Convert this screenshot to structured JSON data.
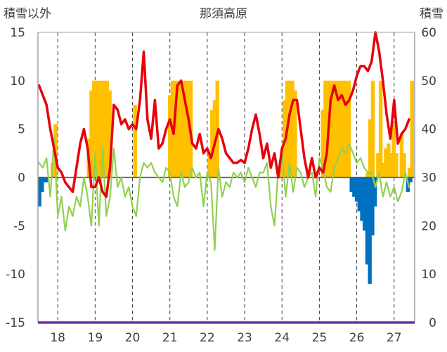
{
  "chart_data": {
    "type": "bar",
    "title": "那須高原",
    "left_axis_title": "積雪以外",
    "right_axis_title": "積雪",
    "left_ylim": [
      -15,
      15
    ],
    "left_ticks": [
      -15,
      -10,
      -5,
      0,
      5,
      10,
      15
    ],
    "right_ylim": [
      0,
      60
    ],
    "right_ticks": [
      0,
      10,
      20,
      30,
      40,
      50,
      60
    ],
    "x_tick_labels": [
      "18",
      "19",
      "20",
      "21",
      "22",
      "23",
      "24",
      "25",
      "26",
      "27"
    ],
    "grid": "vertical dashed",
    "colors": {
      "red_line": "#e8000b",
      "green_line": "#92d050",
      "orange_bars": "#ffc000",
      "blue_bars": "#0070c0",
      "baseline": "#7030a0",
      "axis": "#a0a0a0"
    },
    "series": [
      {
        "color": "#e8000b",
        "chart_type": "line",
        "axis": "left",
        "x": [
          17.5,
          17.6,
          17.7,
          17.8,
          17.9,
          18.0,
          18.1,
          18.2,
          18.3,
          18.4,
          18.5,
          18.6,
          18.7,
          18.8,
          18.9,
          19.0,
          19.1,
          19.2,
          19.3,
          19.4,
          19.5,
          19.6,
          19.7,
          19.8,
          19.9,
          20.0,
          20.1,
          20.2,
          20.3,
          20.4,
          20.5,
          20.6,
          20.7,
          20.8,
          20.9,
          21.0,
          21.1,
          21.2,
          21.3,
          21.4,
          21.5,
          21.6,
          21.7,
          21.8,
          21.9,
          22.0,
          22.1,
          22.2,
          22.3,
          22.4,
          22.5,
          22.6,
          22.7,
          22.8,
          22.9,
          23.0,
          23.1,
          23.2,
          23.3,
          23.4,
          23.5,
          23.6,
          23.7,
          23.8,
          23.9,
          24.0,
          24.1,
          24.2,
          24.3,
          24.4,
          24.5,
          24.6,
          24.7,
          24.8,
          24.9,
          25.0,
          25.1,
          25.2,
          25.3,
          25.4,
          25.5,
          25.6,
          25.7,
          25.8,
          25.9,
          26.0,
          26.1,
          26.2,
          26.3,
          26.4,
          26.5,
          26.6,
          26.7,
          26.8,
          26.9,
          27.0,
          27.1,
          27.2,
          27.3,
          27.4
        ],
        "values": [
          9.5,
          8.5,
          7.5,
          5.0,
          3.0,
          1.0,
          0.5,
          -0.5,
          -1.0,
          -1.5,
          1.0,
          3.5,
          5.0,
          3.0,
          -1.0,
          -1.0,
          0.0,
          -1.5,
          -2.0,
          1.0,
          7.5,
          7.0,
          5.5,
          6.0,
          5.0,
          5.5,
          5.0,
          8.0,
          13.0,
          6.0,
          4.0,
          8.0,
          3.0,
          3.5,
          5.0,
          6.0,
          4.5,
          9.5,
          10.0,
          8.0,
          6.0,
          3.5,
          3.0,
          4.5,
          2.5,
          3.0,
          2.0,
          3.5,
          5.0,
          4.0,
          2.5,
          2.0,
          1.5,
          1.5,
          1.8,
          1.5,
          3.0,
          5.0,
          6.5,
          4.5,
          2.0,
          3.5,
          1.0,
          2.5,
          0.0,
          3.0,
          4.0,
          6.5,
          8.0,
          8.0,
          5.0,
          2.0,
          0.0,
          2.0,
          0.0,
          1.0,
          0.5,
          2.5,
          8.0,
          9.5,
          8.0,
          8.5,
          7.5,
          8.0,
          9.0,
          10.5,
          11.5,
          11.5,
          11.0,
          12.0,
          15.0,
          13.0,
          10.0,
          6.5,
          4.0,
          8.0,
          3.5,
          4.5,
          5.0,
          6.0
        ]
      },
      {
        "color": "#92d050",
        "chart_type": "line",
        "axis": "left",
        "x": [
          17.5,
          17.6,
          17.7,
          17.8,
          17.9,
          18.0,
          18.1,
          18.2,
          18.3,
          18.4,
          18.5,
          18.6,
          18.7,
          18.8,
          18.9,
          19.0,
          19.1,
          19.2,
          19.3,
          19.4,
          19.5,
          19.6,
          19.7,
          19.8,
          19.9,
          20.0,
          20.1,
          20.2,
          20.3,
          20.4,
          20.5,
          20.6,
          20.7,
          20.8,
          20.9,
          21.0,
          21.1,
          21.2,
          21.3,
          21.4,
          21.5,
          21.6,
          21.7,
          21.8,
          21.9,
          22.0,
          22.1,
          22.2,
          22.3,
          22.4,
          22.5,
          22.6,
          22.7,
          22.8,
          22.9,
          23.0,
          23.1,
          23.2,
          23.3,
          23.4,
          23.5,
          23.6,
          23.7,
          23.8,
          23.9,
          24.0,
          24.1,
          24.2,
          24.3,
          24.4,
          24.5,
          24.6,
          24.7,
          24.8,
          24.9,
          25.0,
          25.1,
          25.2,
          25.3,
          25.4,
          25.5,
          25.6,
          25.7,
          25.8,
          25.9,
          26.0,
          26.1,
          26.2,
          26.3,
          26.4,
          26.5,
          26.6,
          26.7,
          26.8,
          26.9,
          27.0,
          27.1,
          27.2,
          27.3,
          27.4
        ],
        "values": [
          1.5,
          1.0,
          2.0,
          -2.0,
          4.0,
          -4.0,
          -2.0,
          -5.5,
          -3.0,
          -4.0,
          -2.0,
          -3.0,
          0.0,
          -2.0,
          -5.0,
          2.5,
          -5.0,
          3.0,
          -4.0,
          -2.0,
          3.0,
          -1.0,
          0.0,
          -2.0,
          -1.0,
          -3.0,
          -4.0,
          0.0,
          1.5,
          1.0,
          1.5,
          0.5,
          0.0,
          -0.5,
          1.0,
          0.5,
          -2.0,
          -3.0,
          0.5,
          -1.0,
          -0.5,
          1.0,
          0.0,
          0.5,
          -3.0,
          0.5,
          -0.5,
          -7.5,
          1.0,
          -2.0,
          -0.5,
          -1.0,
          0.5,
          0.0,
          0.5,
          -0.5,
          1.0,
          0.0,
          -1.0,
          0.5,
          0.5,
          1.5,
          -3.0,
          -5.0,
          1.0,
          2.5,
          -2.0,
          1.5,
          -1.5,
          1.0,
          0.5,
          -1.0,
          0.0,
          0.5,
          -2.0,
          2.0,
          1.0,
          -1.0,
          -1.5,
          1.0,
          2.0,
          3.0,
          2.5,
          3.5,
          2.5,
          1.5,
          2.0,
          1.0,
          0.5,
          0.5,
          -1.0,
          0.5,
          -2.0,
          -0.5,
          -2.0,
          -1.0,
          -2.5,
          -1.5,
          0.5,
          -1.0
        ]
      },
      {
        "color": "#ffc000",
        "chart_type": "bar",
        "axis": "right",
        "x": [
          17.86,
          17.94,
          18.83,
          18.9,
          18.97,
          19.04,
          19.11,
          19.18,
          19.25,
          19.32,
          19.39,
          20.0,
          20.07,
          21.0,
          21.07,
          21.14,
          21.21,
          21.28,
          21.35,
          21.42,
          21.49,
          21.56,
          22.06,
          22.13,
          22.2,
          22.27,
          24.0,
          24.07,
          24.14,
          24.21,
          24.28,
          24.35,
          25.02,
          25.09,
          25.16,
          25.23,
          25.3,
          25.37,
          25.44,
          25.51,
          25.58,
          25.65,
          25.72,
          25.79,
          26.29,
          26.36,
          26.43,
          26.5,
          26.57,
          26.64,
          26.71,
          26.78,
          26.85,
          26.92,
          26.99,
          27.06,
          27.13,
          27.2,
          27.27,
          27.34,
          27.41,
          27.48
        ],
        "values": [
          33,
          41,
          38,
          48,
          50,
          50,
          50,
          50,
          50,
          50,
          48,
          30,
          45,
          47,
          50,
          50,
          50,
          50,
          50,
          50,
          50,
          50,
          35,
          44,
          46,
          50,
          35,
          46,
          50,
          50,
          50,
          48,
          30,
          44,
          50,
          50,
          50,
          50,
          50,
          50,
          50,
          50,
          50,
          50,
          31,
          42,
          50,
          30,
          35,
          50,
          33,
          36,
          37,
          35,
          41,
          35,
          30,
          39,
          35,
          30,
          32,
          50
        ]
      },
      {
        "color": "#0070c0",
        "chart_type": "bar",
        "axis": "left",
        "x": [
          17.51,
          17.58,
          17.65,
          17.72,
          25.86,
          25.93,
          26.0,
          26.07,
          26.14,
          26.21,
          26.28,
          26.35,
          26.42,
          26.49,
          27.37,
          27.44
        ],
        "values": [
          -3.0,
          -1.5,
          -0.5,
          -0.5,
          -1.5,
          -2.0,
          -2.5,
          -3.5,
          -4.5,
          -5.5,
          -9.0,
          -11.0,
          -6.0,
          -3.0,
          -1.5,
          -0.5
        ]
      }
    ]
  }
}
